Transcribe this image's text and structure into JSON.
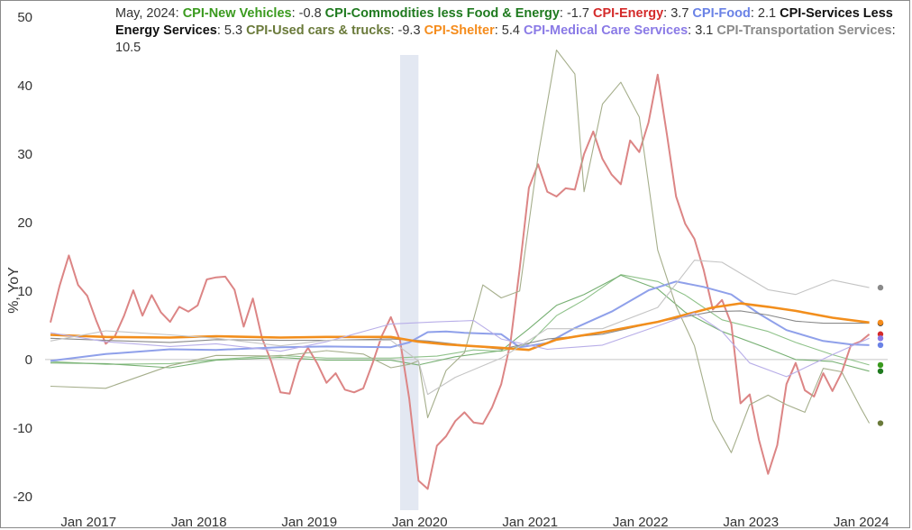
{
  "chart_data": {
    "type": "line",
    "legend_date": "May, 2024",
    "ylabel": "%, YoY",
    "ylim": [
      -22,
      50
    ],
    "xlim": [
      "2016-12-01",
      "2024-07-01"
    ],
    "y_ticks": [
      -20,
      -10,
      0,
      10,
      20,
      30,
      40,
      50
    ],
    "x_ticks": [
      "Jan 2017",
      "Jan 2018",
      "Jan 2019",
      "Jan 2020",
      "Jan 2021",
      "Jan 2022",
      "Jan 2023",
      "Jan 2024"
    ],
    "recession_band": [
      "2020-02",
      "2020-04"
    ],
    "series": [
      {
        "name": "CPI-New Vehicles",
        "label_color": "#3a9a1e",
        "color": "#8fc28a",
        "width": 1.1,
        "latest": "-0.8",
        "points": [
          [
            "2016-12",
            -0.3
          ],
          [
            "2017-06",
            -0.7
          ],
          [
            "2018-01",
            -0.6
          ],
          [
            "2018-06",
            0.0
          ],
          [
            "2019-01",
            0.6
          ],
          [
            "2019-06",
            0.2
          ],
          [
            "2020-01",
            0.2
          ],
          [
            "2020-06",
            0.5
          ],
          [
            "2020-10",
            1.4
          ],
          [
            "2021-01",
            1.2
          ],
          [
            "2021-04",
            2.3
          ],
          [
            "2021-07",
            6.4
          ],
          [
            "2021-10",
            8.7
          ],
          [
            "2022-02",
            12.4
          ],
          [
            "2022-06",
            11.4
          ],
          [
            "2022-09",
            9.4
          ],
          [
            "2023-01",
            5.8
          ],
          [
            "2023-06",
            4.1
          ],
          [
            "2023-09",
            2.5
          ],
          [
            "2024-01",
            0.7
          ],
          [
            "2024-05",
            -0.8
          ]
        ]
      },
      {
        "name": "CPI-Commodities less Food & Energy",
        "label_color": "#1f7a1f",
        "color": "#77b073",
        "width": 1.1,
        "latest": "-1.7",
        "points": [
          [
            "2016-12",
            -0.5
          ],
          [
            "2017-06",
            -0.6
          ],
          [
            "2018-01",
            -1.2
          ],
          [
            "2018-06",
            -0.1
          ],
          [
            "2019-01",
            0.3
          ],
          [
            "2019-06",
            -0.1
          ],
          [
            "2020-01",
            -0.1
          ],
          [
            "2020-04",
            -0.8
          ],
          [
            "2020-08",
            0.4
          ],
          [
            "2021-01",
            1.3
          ],
          [
            "2021-04",
            4.5
          ],
          [
            "2021-07",
            7.9
          ],
          [
            "2021-10",
            9.5
          ],
          [
            "2022-02",
            12.3
          ],
          [
            "2022-06",
            10.3
          ],
          [
            "2022-09",
            6.9
          ],
          [
            "2023-01",
            4.1
          ],
          [
            "2023-06",
            1.6
          ],
          [
            "2023-09",
            0.0
          ],
          [
            "2024-01",
            -0.3
          ],
          [
            "2024-05",
            -1.7
          ]
        ]
      },
      {
        "name": "CPI-Energy",
        "label_color": "#d42a2a",
        "color": "#dc8585",
        "width": 2.0,
        "latest": "3.7",
        "points": [
          [
            "2016-12",
            5.4
          ],
          [
            "2017-01",
            10.8
          ],
          [
            "2017-02",
            15.2
          ],
          [
            "2017-03",
            10.9
          ],
          [
            "2017-04",
            9.3
          ],
          [
            "2017-05",
            5.6
          ],
          [
            "2017-06",
            2.3
          ],
          [
            "2017-07",
            3.4
          ],
          [
            "2017-08",
            6.4
          ],
          [
            "2017-09",
            10.1
          ],
          [
            "2017-10",
            6.4
          ],
          [
            "2017-11",
            9.4
          ],
          [
            "2017-12",
            6.9
          ],
          [
            "2018-01",
            5.5
          ],
          [
            "2018-02",
            7.7
          ],
          [
            "2018-03",
            7.0
          ],
          [
            "2018-04",
            7.9
          ],
          [
            "2018-05",
            11.7
          ],
          [
            "2018-06",
            12.0
          ],
          [
            "2018-07",
            12.1
          ],
          [
            "2018-08",
            10.2
          ],
          [
            "2018-09",
            4.8
          ],
          [
            "2018-10",
            8.9
          ],
          [
            "2018-11",
            3.1
          ],
          [
            "2018-12",
            -0.3
          ],
          [
            "2019-01",
            -4.8
          ],
          [
            "2019-02",
            -5.0
          ],
          [
            "2019-03",
            -0.4
          ],
          [
            "2019-04",
            1.7
          ],
          [
            "2019-05",
            -0.6
          ],
          [
            "2019-06",
            -3.4
          ],
          [
            "2019-07",
            -2.0
          ],
          [
            "2019-08",
            -4.4
          ],
          [
            "2019-09",
            -4.8
          ],
          [
            "2019-10",
            -4.2
          ],
          [
            "2019-11",
            -0.6
          ],
          [
            "2019-12",
            3.4
          ],
          [
            "2020-01",
            6.2
          ],
          [
            "2020-02",
            2.8
          ],
          [
            "2020-03",
            -5.7
          ],
          [
            "2020-04",
            -17.7
          ],
          [
            "2020-05",
            -18.9
          ],
          [
            "2020-06",
            -12.6
          ],
          [
            "2020-07",
            -11.2
          ],
          [
            "2020-08",
            -9.0
          ],
          [
            "2020-09",
            -7.7
          ],
          [
            "2020-10",
            -9.2
          ],
          [
            "2020-11",
            -9.4
          ],
          [
            "2020-12",
            -7.0
          ],
          [
            "2021-01",
            -3.6
          ],
          [
            "2021-02",
            2.4
          ],
          [
            "2021-03",
            13.2
          ],
          [
            "2021-04",
            25.1
          ],
          [
            "2021-05",
            28.5
          ],
          [
            "2021-06",
            24.5
          ],
          [
            "2021-07",
            23.8
          ],
          [
            "2021-08",
            25.0
          ],
          [
            "2021-09",
            24.8
          ],
          [
            "2021-10",
            30.0
          ],
          [
            "2021-11",
            33.3
          ],
          [
            "2021-12",
            29.3
          ],
          [
            "2022-01",
            27.0
          ],
          [
            "2022-02",
            25.6
          ],
          [
            "2022-03",
            32.0
          ],
          [
            "2022-04",
            30.3
          ],
          [
            "2022-05",
            34.6
          ],
          [
            "2022-06",
            41.6
          ],
          [
            "2022-07",
            32.9
          ],
          [
            "2022-08",
            23.8
          ],
          [
            "2022-09",
            19.8
          ],
          [
            "2022-10",
            17.6
          ],
          [
            "2022-11",
            13.1
          ],
          [
            "2022-12",
            7.3
          ],
          [
            "2023-01",
            8.7
          ],
          [
            "2023-02",
            5.2
          ],
          [
            "2023-03",
            -6.4
          ],
          [
            "2023-04",
            -5.1
          ],
          [
            "2023-05",
            -11.7
          ],
          [
            "2023-06",
            -16.7
          ],
          [
            "2023-07",
            -12.5
          ],
          [
            "2023-08",
            -3.6
          ],
          [
            "2023-09",
            -0.5
          ],
          [
            "2023-10",
            -4.5
          ],
          [
            "2023-11",
            -5.4
          ],
          [
            "2023-12",
            -2.0
          ],
          [
            "2024-01",
            -4.6
          ],
          [
            "2024-02",
            -1.9
          ],
          [
            "2024-03",
            2.1
          ],
          [
            "2024-04",
            2.6
          ],
          [
            "2024-05",
            3.7
          ]
        ]
      },
      {
        "name": "CPI-Food",
        "label_color": "#6a82e6",
        "color": "#8fa0ea",
        "width": 2.0,
        "latest": "2.1",
        "points": [
          [
            "2016-12",
            -0.2
          ],
          [
            "2017-06",
            0.8
          ],
          [
            "2018-01",
            1.5
          ],
          [
            "2018-06",
            1.4
          ],
          [
            "2019-01",
            1.8
          ],
          [
            "2019-06",
            1.9
          ],
          [
            "2020-01",
            1.8
          ],
          [
            "2020-03",
            2.5
          ],
          [
            "2020-05",
            4.0
          ],
          [
            "2020-07",
            4.1
          ],
          [
            "2020-09",
            3.9
          ],
          [
            "2021-01",
            3.7
          ],
          [
            "2021-03",
            1.8
          ],
          [
            "2021-06",
            2.4
          ],
          [
            "2021-09",
            4.6
          ],
          [
            "2022-01",
            7.0
          ],
          [
            "2022-05",
            10.1
          ],
          [
            "2022-08",
            11.4
          ],
          [
            "2022-11",
            10.6
          ],
          [
            "2023-02",
            9.5
          ],
          [
            "2023-05",
            6.7
          ],
          [
            "2023-08",
            4.3
          ],
          [
            "2023-12",
            2.7
          ],
          [
            "2024-03",
            2.2
          ],
          [
            "2024-05",
            2.1
          ]
        ]
      },
      {
        "name": "CPI-Services Less Energy Services",
        "label_color": "#111111",
        "color": "#8a8a8a",
        "width": 1.1,
        "latest": "5.3",
        "points": [
          [
            "2016-12",
            3.1
          ],
          [
            "2017-06",
            2.8
          ],
          [
            "2018-01",
            2.5
          ],
          [
            "2018-06",
            2.9
          ],
          [
            "2019-01",
            2.8
          ],
          [
            "2019-06",
            2.8
          ],
          [
            "2020-01",
            3.0
          ],
          [
            "2020-05",
            2.7
          ],
          [
            "2020-09",
            2.1
          ],
          [
            "2021-01",
            1.5
          ],
          [
            "2021-06",
            3.0
          ],
          [
            "2021-12",
            3.7
          ],
          [
            "2022-06",
            5.5
          ],
          [
            "2022-12",
            7.0
          ],
          [
            "2023-03",
            7.1
          ],
          [
            "2023-06",
            6.5
          ],
          [
            "2023-09",
            5.6
          ],
          [
            "2023-12",
            5.3
          ],
          [
            "2024-05",
            5.3
          ]
        ]
      },
      {
        "name": "CPI-Used cars & trucks",
        "label_color": "#6a7a3a",
        "color": "#a5ae8b",
        "width": 1.1,
        "latest": "-9.3",
        "points": [
          [
            "2016-12",
            -3.9
          ],
          [
            "2017-06",
            -4.2
          ],
          [
            "2018-01",
            -0.9
          ],
          [
            "2018-06",
            0.6
          ],
          [
            "2019-01",
            0.5
          ],
          [
            "2019-06",
            1.3
          ],
          [
            "2019-10",
            0.8
          ],
          [
            "2020-01",
            -1.2
          ],
          [
            "2020-03",
            -0.7
          ],
          [
            "2020-04",
            -0.2
          ],
          [
            "2020-05",
            -8.5
          ],
          [
            "2020-07",
            -1.6
          ],
          [
            "2020-09",
            1.0
          ],
          [
            "2020-11",
            10.9
          ],
          [
            "2021-01",
            9.0
          ],
          [
            "2021-03",
            10.0
          ],
          [
            "2021-05",
            29.7
          ],
          [
            "2021-07",
            45.2
          ],
          [
            "2021-09",
            41.7
          ],
          [
            "2021-10",
            24.5
          ],
          [
            "2021-12",
            37.3
          ],
          [
            "2022-02",
            40.5
          ],
          [
            "2022-04",
            35.4
          ],
          [
            "2022-06",
            16.0
          ],
          [
            "2022-08",
            7.8
          ],
          [
            "2022-10",
            2.0
          ],
          [
            "2022-12",
            -8.8
          ],
          [
            "2023-02",
            -13.6
          ],
          [
            "2023-04",
            -6.6
          ],
          [
            "2023-06",
            -5.2
          ],
          [
            "2023-08",
            -6.6
          ],
          [
            "2023-10",
            -7.7
          ],
          [
            "2023-12",
            -1.3
          ],
          [
            "2024-02",
            -1.8
          ],
          [
            "2024-04",
            -6.9
          ],
          [
            "2024-05",
            -9.3
          ]
        ]
      },
      {
        "name": "CPI-Shelter",
        "label_color": "#f58c1c",
        "color": "#f28e1c",
        "width": 2.6,
        "latest": "5.4",
        "points": [
          [
            "2016-12",
            3.6
          ],
          [
            "2017-06",
            3.3
          ],
          [
            "2018-01",
            3.2
          ],
          [
            "2018-06",
            3.4
          ],
          [
            "2019-01",
            3.2
          ],
          [
            "2019-06",
            3.3
          ],
          [
            "2020-01",
            3.3
          ],
          [
            "2020-04",
            2.6
          ],
          [
            "2020-07",
            2.2
          ],
          [
            "2021-01",
            1.7
          ],
          [
            "2021-04",
            1.4
          ],
          [
            "2021-07",
            2.9
          ],
          [
            "2021-12",
            4.0
          ],
          [
            "2022-06",
            5.5
          ],
          [
            "2022-12",
            7.6
          ],
          [
            "2023-03",
            8.2
          ],
          [
            "2023-06",
            7.7
          ],
          [
            "2023-09",
            7.1
          ],
          [
            "2024-01",
            6.1
          ],
          [
            "2024-05",
            5.4
          ]
        ]
      },
      {
        "name": "CPI-Medical Care Services",
        "label_color": "#8a7ae6",
        "color": "#b8aee8",
        "width": 1.1,
        "latest": "3.1",
        "points": [
          [
            "2016-12",
            3.9
          ],
          [
            "2017-06",
            2.6
          ],
          [
            "2018-01",
            1.9
          ],
          [
            "2018-06",
            2.3
          ],
          [
            "2019-01",
            1.2
          ],
          [
            "2019-06",
            2.6
          ],
          [
            "2020-01",
            5.2
          ],
          [
            "2020-06",
            5.5
          ],
          [
            "2020-10",
            5.7
          ],
          [
            "2021-01",
            3.0
          ],
          [
            "2021-06",
            1.5
          ],
          [
            "2021-12",
            2.1
          ],
          [
            "2022-06",
            4.9
          ],
          [
            "2022-10",
            6.8
          ],
          [
            "2023-01",
            4.1
          ],
          [
            "2023-04",
            -0.5
          ],
          [
            "2023-08",
            -2.5
          ],
          [
            "2023-10",
            -1.2
          ],
          [
            "2024-01",
            0.7
          ],
          [
            "2024-05",
            3.1
          ]
        ]
      },
      {
        "name": "CPI-Transportation Services",
        "label_color": "#8a8a8a",
        "color": "#c4c4c4",
        "width": 1.1,
        "latest": "10.5",
        "points": [
          [
            "2016-12",
            2.7
          ],
          [
            "2017-06",
            4.2
          ],
          [
            "2018-01",
            3.6
          ],
          [
            "2018-06",
            3.1
          ],
          [
            "2019-01",
            2.0
          ],
          [
            "2019-06",
            2.8
          ],
          [
            "2020-01",
            2.8
          ],
          [
            "2020-04",
            -0.2
          ],
          [
            "2020-05",
            -5.1
          ],
          [
            "2020-08",
            -2.6
          ],
          [
            "2021-01",
            0.2
          ],
          [
            "2021-06",
            4.5
          ],
          [
            "2021-12",
            4.5
          ],
          [
            "2022-06",
            7.6
          ],
          [
            "2022-10",
            14.5
          ],
          [
            "2023-01",
            14.2
          ],
          [
            "2023-06",
            10.2
          ],
          [
            "2023-09",
            9.5
          ],
          [
            "2024-01",
            11.6
          ],
          [
            "2024-05",
            10.5
          ]
        ]
      }
    ]
  }
}
